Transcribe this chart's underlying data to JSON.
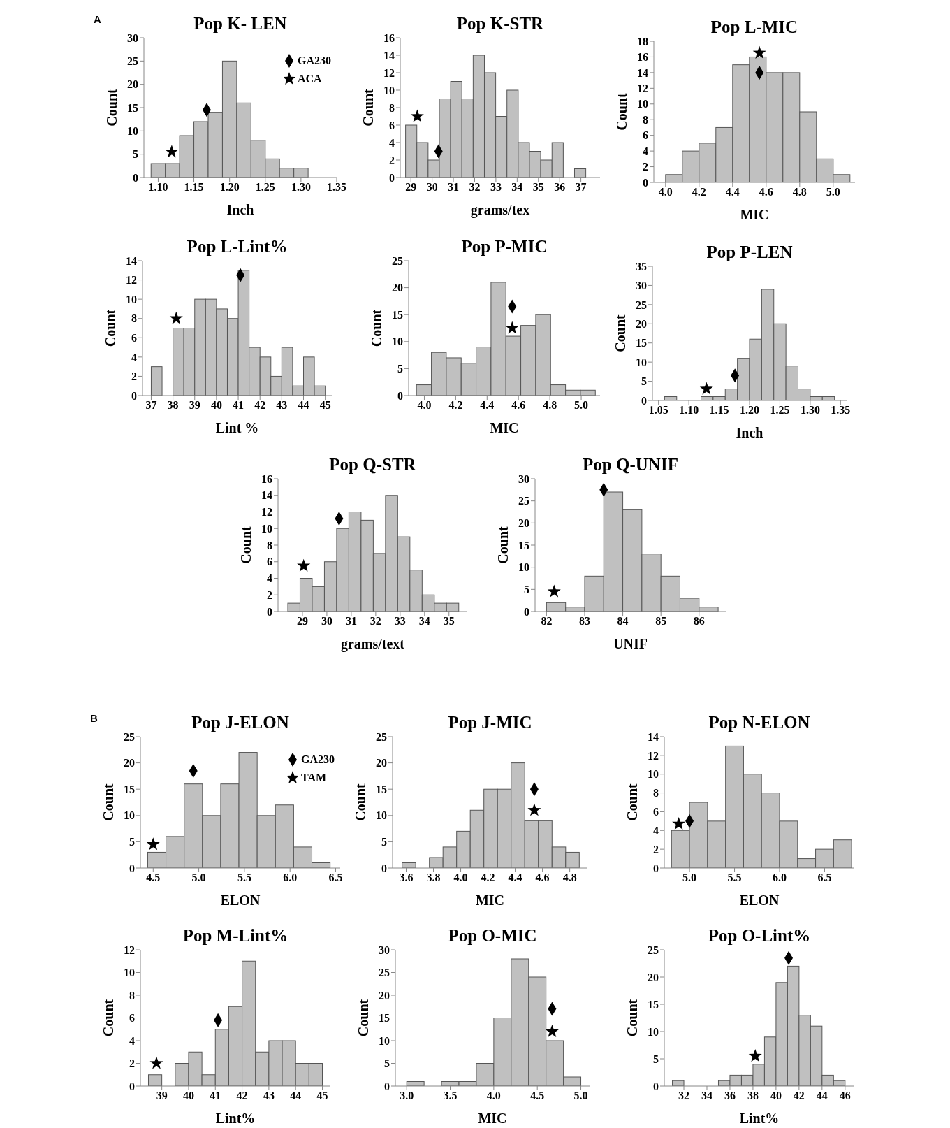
{
  "chart_data": [
    {
      "type": "histogram",
      "title": "Pop K- LEN",
      "xlabel": "Inch",
      "ylabel": "Count",
      "annotations": [
        "A"
      ],
      "legend": "top right",
      "color": "#c0c0c0",
      "bins": [
        1.09,
        1.11,
        1.13,
        1.15,
        1.17,
        1.19,
        1.21,
        1.23,
        1.25,
        1.27,
        1.29,
        1.31
      ],
      "values": [
        3,
        3,
        9,
        12,
        14,
        25,
        16,
        8,
        4,
        2,
        2
      ],
      "xlim": [
        1.08,
        1.35
      ],
      "xticks": [
        {
          "value": 1.1,
          "label": "1.10"
        },
        1.15,
        {
          "value": 1.2,
          "label": "1.20"
        },
        1.25,
        {
          "value": 1.3,
          "label": "1.30"
        },
        1.35
      ],
      "ylim": [
        0,
        30
      ],
      "yticks": [
        0,
        5,
        10,
        15,
        20,
        25,
        30
      ],
      "series": [
        {
          "name": "GA230",
          "type": "scatter",
          "marker": "diamond",
          "color": "#000000",
          "x": [
            1.168
          ],
          "values": [
            14.5
          ]
        },
        {
          "name": "ACA",
          "type": "scatter",
          "marker": "star",
          "color": "#000000",
          "x": [
            1.119
          ],
          "values": [
            5.5
          ]
        }
      ]
    },
    {
      "type": "histogram",
      "title": "Pop K-STR",
      "xlabel": "grams/tex",
      "ylabel": "Count",
      "color": "#c0c0c0",
      "bins": [
        28.75,
        29.28,
        29.81,
        30.34,
        30.87,
        31.4,
        31.93,
        32.46,
        32.99,
        33.52,
        34.05,
        34.58,
        35.11,
        35.64,
        36.17,
        36.7,
        37.23
      ],
      "values": [
        6,
        4,
        2,
        9,
        11,
        9,
        14,
        12,
        7,
        10,
        4,
        3,
        2,
        4,
        0,
        1
      ],
      "xlim": [
        28.5,
        37.9
      ],
      "xticks": [
        29,
        30,
        31,
        32,
        33,
        34,
        35,
        36,
        37
      ],
      "ylim": [
        0,
        16
      ],
      "yticks": [
        0,
        2,
        4,
        6,
        8,
        10,
        12,
        14,
        16
      ],
      "series": [
        {
          "type": "scatter",
          "marker": "diamond",
          "color": "#000000",
          "x": [
            30.3
          ],
          "values": [
            3
          ]
        },
        {
          "type": "scatter",
          "marker": "star",
          "color": "#000000",
          "x": [
            29.3
          ],
          "values": [
            7
          ]
        }
      ]
    },
    {
      "type": "histogram",
      "title": "Pop L-MIC",
      "xlabel": "MIC",
      "ylabel": "Count",
      "color": "#c0c0c0",
      "bins": [
        4.0,
        4.1,
        4.2,
        4.3,
        4.4,
        4.5,
        4.6,
        4.7,
        4.8,
        4.9,
        5.0,
        5.1
      ],
      "values": [
        1,
        4,
        5,
        7,
        15,
        16,
        14,
        14,
        9,
        3,
        1
      ],
      "xlim": [
        3.93,
        5.13
      ],
      "xticks": [
        {
          "value": 4,
          "label": "4.0"
        },
        4.2,
        4.4,
        4.6,
        4.8,
        {
          "value": 5,
          "label": "5.0"
        }
      ],
      "ylim": [
        0,
        18
      ],
      "yticks": [
        0,
        2,
        4,
        6,
        8,
        10,
        12,
        14,
        16,
        18
      ],
      "series": [
        {
          "type": "scatter",
          "marker": "diamond",
          "color": "#000000",
          "x": [
            4.56
          ],
          "values": [
            14
          ]
        },
        {
          "type": "scatter",
          "marker": "star",
          "color": "#000000",
          "x": [
            4.56
          ],
          "values": [
            16.5
          ]
        }
      ]
    },
    {
      "type": "histogram",
      "title": "Pop L-Lint%",
      "xlabel": "Lint %",
      "ylabel": "Count",
      "color": "#c0c0c0",
      "bins": [
        37,
        37.5,
        38,
        38.5,
        39,
        39.5,
        40,
        40.5,
        41,
        41.5,
        42,
        42.5,
        43,
        43.5,
        44,
        44.5,
        45
      ],
      "values": [
        3,
        0,
        7,
        7,
        10,
        10,
        9,
        8,
        13,
        5,
        4,
        2,
        5,
        1,
        4,
        1
      ],
      "xlim": [
        36.6,
        45.3
      ],
      "xticks": [
        37,
        38,
        39,
        40,
        41,
        42,
        43,
        44,
        45
      ],
      "ylim": [
        0,
        14
      ],
      "yticks": [
        0,
        2,
        4,
        6,
        8,
        10,
        12,
        14
      ],
      "series": [
        {
          "type": "scatter",
          "marker": "diamond",
          "color": "#000000",
          "x": [
            41.1
          ],
          "values": [
            12.5
          ]
        },
        {
          "type": "scatter",
          "marker": "star",
          "color": "#000000",
          "x": [
            38.15
          ],
          "values": [
            8
          ]
        }
      ]
    },
    {
      "type": "histogram",
      "title": "Pop P-MIC",
      "xlabel": "MIC",
      "ylabel": "Count",
      "color": "#c0c0c0",
      "bins": [
        3.95,
        4.045,
        4.14,
        4.235,
        4.33,
        4.425,
        4.52,
        4.615,
        4.71,
        4.805,
        4.9,
        4.995,
        5.09
      ],
      "values": [
        2,
        8,
        7,
        6,
        9,
        21,
        11,
        13,
        15,
        2,
        1,
        1
      ],
      "xlim": [
        3.9,
        5.12
      ],
      "xticks": [
        {
          "value": 4,
          "label": "4.0"
        },
        4.2,
        4.4,
        4.6,
        4.8,
        {
          "value": 5,
          "label": "5.0"
        }
      ],
      "ylim": [
        0,
        25
      ],
      "yticks": [
        0,
        5,
        10,
        15,
        20,
        25
      ],
      "series": [
        {
          "type": "scatter",
          "marker": "diamond",
          "color": "#000000",
          "x": [
            4.56
          ],
          "values": [
            16.5
          ]
        },
        {
          "type": "scatter",
          "marker": "star",
          "color": "#000000",
          "x": [
            4.56
          ],
          "values": [
            12.5
          ]
        }
      ]
    },
    {
      "type": "histogram",
      "title": "Pop P-LEN",
      "xlabel": "Inch",
      "ylabel": "Count",
      "color": "#c0c0c0",
      "bins": [
        1.06,
        1.08,
        1.1,
        1.12,
        1.14,
        1.16,
        1.18,
        1.2,
        1.22,
        1.24,
        1.26,
        1.28,
        1.3,
        1.32,
        1.34
      ],
      "values": [
        1,
        0,
        0,
        1,
        1,
        3,
        11,
        16,
        29,
        20,
        9,
        3,
        1,
        1
      ],
      "xlim": [
        1.04,
        1.36
      ],
      "xticks": [
        1.05,
        {
          "value": 1.1,
          "label": "1.10"
        },
        1.15,
        {
          "value": 1.2,
          "label": "1.20"
        },
        1.25,
        {
          "value": 1.3,
          "label": "1.30"
        },
        1.35
      ],
      "ylim": [
        0,
        35
      ],
      "yticks": [
        0,
        5,
        10,
        15,
        20,
        25,
        30,
        35
      ],
      "series": [
        {
          "type": "scatter",
          "marker": "diamond",
          "color": "#000000",
          "x": [
            1.176
          ],
          "values": [
            6.5
          ]
        },
        {
          "type": "scatter",
          "marker": "star",
          "color": "#000000",
          "x": [
            1.129
          ],
          "values": [
            3
          ]
        }
      ]
    },
    {
      "type": "histogram",
      "title": "Pop Q-STR",
      "xlabel": "grams/text",
      "ylabel": "Count",
      "color": "#c0c0c0",
      "bins": [
        28.4,
        28.9,
        29.4,
        29.9,
        30.4,
        30.9,
        31.4,
        31.9,
        32.4,
        32.9,
        33.4,
        33.9,
        34.4,
        34.9,
        35.4
      ],
      "values": [
        1,
        4,
        3,
        6,
        10,
        12,
        11,
        7,
        14,
        9,
        5,
        2,
        1,
        1
      ],
      "xlim": [
        28,
        35.75
      ],
      "xticks": [
        29,
        30,
        31,
        32,
        33,
        34,
        35
      ],
      "ylim": [
        0,
        16
      ],
      "yticks": [
        0,
        2,
        4,
        6,
        8,
        10,
        12,
        14,
        16
      ],
      "series": [
        {
          "type": "scatter",
          "marker": "diamond",
          "color": "#000000",
          "x": [
            30.5
          ],
          "values": [
            11.2
          ]
        },
        {
          "type": "scatter",
          "marker": "star",
          "color": "#000000",
          "x": [
            29.05
          ],
          "values": [
            5.5
          ]
        }
      ]
    },
    {
      "type": "histogram",
      "title": "Pop Q-UNIF",
      "xlabel": "UNIF",
      "ylabel": "Count",
      "color": "#c0c0c0",
      "bins": [
        82,
        82.5,
        83,
        83.5,
        84,
        84.5,
        85,
        85.5,
        86,
        86.5
      ],
      "values": [
        2,
        1,
        8,
        27,
        23,
        13,
        8,
        3,
        1
      ],
      "xlim": [
        81.7,
        86.7
      ],
      "xticks": [
        82,
        83,
        84,
        85,
        86
      ],
      "ylim": [
        0,
        30
      ],
      "yticks": [
        0,
        5,
        10,
        15,
        20,
        25,
        30
      ],
      "series": [
        {
          "type": "scatter",
          "marker": "diamond",
          "color": "#000000",
          "x": [
            83.5
          ],
          "values": [
            27.5
          ]
        },
        {
          "type": "scatter",
          "marker": "star",
          "color": "#000000",
          "x": [
            82.2
          ],
          "values": [
            4.5
          ]
        }
      ]
    },
    {
      "type": "histogram",
      "title": "Pop J-ELON",
      "xlabel": "ELON",
      "ylabel": "Count",
      "annotations": [
        "B"
      ],
      "legend": "top right",
      "color": "#c0c0c0",
      "bins": [
        4.44,
        4.64,
        4.84,
        5.04,
        5.24,
        5.44,
        5.64,
        5.84,
        6.04,
        6.24,
        6.44
      ],
      "values": [
        3,
        6,
        16,
        10,
        16,
        22,
        10,
        12,
        4,
        1
      ],
      "xlim": [
        4.36,
        6.55
      ],
      "xticks": [
        4.5,
        {
          "value": 5,
          "label": "5.0"
        },
        5.5,
        {
          "value": 6,
          "label": "6.0"
        },
        6.5
      ],
      "ylim": [
        0,
        25
      ],
      "yticks": [
        0,
        5,
        10,
        15,
        20,
        25
      ],
      "series": [
        {
          "name": "GA230",
          "type": "scatter",
          "marker": "diamond",
          "color": "#000000",
          "x": [
            4.94
          ],
          "values": [
            18.5
          ]
        },
        {
          "name": "TAM",
          "type": "scatter",
          "marker": "star",
          "color": "#000000",
          "x": [
            4.5
          ],
          "values": [
            4.5
          ]
        }
      ]
    },
    {
      "type": "histogram",
      "title": "Pop J-MIC",
      "xlabel": "MIC",
      "ylabel": "Count",
      "color": "#c0c0c0",
      "bins": [
        3.57,
        3.67,
        3.77,
        3.87,
        3.97,
        4.07,
        4.17,
        4.27,
        4.37,
        4.47,
        4.57,
        4.67,
        4.77,
        4.87
      ],
      "values": [
        1,
        0,
        2,
        4,
        7,
        11,
        15,
        15,
        20,
        9,
        9,
        4,
        3
      ],
      "xlim": [
        3.5,
        4.93
      ],
      "xticks": [
        3.6,
        3.8,
        {
          "value": 4,
          "label": "4.0"
        },
        4.2,
        4.4,
        4.6,
        4.8
      ],
      "ylim": [
        0,
        25
      ],
      "yticks": [
        0,
        5,
        10,
        15,
        20,
        25
      ],
      "series": [
        {
          "type": "scatter",
          "marker": "diamond",
          "color": "#000000",
          "x": [
            4.54
          ],
          "values": [
            15
          ]
        },
        {
          "type": "scatter",
          "marker": "star",
          "color": "#000000",
          "x": [
            4.54
          ],
          "values": [
            11
          ]
        }
      ]
    },
    {
      "type": "histogram",
      "title": "Pop N-ELON",
      "xlabel": "ELON",
      "ylabel": "Count",
      "color": "#c0c0c0",
      "bins": [
        4.8,
        5.0,
        5.2,
        5.4,
        5.6,
        5.8,
        6.0,
        6.2,
        6.4,
        6.6,
        6.8
      ],
      "values": [
        4,
        7,
        5,
        13,
        10,
        8,
        5,
        1,
        2,
        3
      ],
      "xlim": [
        4.72,
        6.83
      ],
      "xticks": [
        {
          "value": 5,
          "label": "5.0"
        },
        5.5,
        {
          "value": 6,
          "label": "6.0"
        },
        6.5
      ],
      "ylim": [
        0,
        14
      ],
      "yticks": [
        0,
        2,
        4,
        6,
        8,
        10,
        12,
        14
      ],
      "series": [
        {
          "type": "scatter",
          "marker": "diamond",
          "color": "#000000",
          "x": [
            5.0
          ],
          "values": [
            5
          ]
        },
        {
          "type": "scatter",
          "marker": "star",
          "color": "#000000",
          "x": [
            4.88
          ],
          "values": [
            4.7
          ]
        }
      ]
    },
    {
      "type": "histogram",
      "title": "Pop M-Lint%",
      "xlabel": "Lint%",
      "ylabel": "Count",
      "color": "#c0c0c0",
      "bins": [
        38.5,
        39,
        39.5,
        40,
        40.5,
        41,
        41.5,
        42,
        42.5,
        43,
        43.5,
        44,
        44.5,
        45
      ],
      "values": [
        1,
        0,
        2,
        3,
        1,
        5,
        7,
        11,
        3,
        4,
        4,
        2,
        2
      ],
      "xlim": [
        38.2,
        45.3
      ],
      "xticks": [
        39,
        40,
        41,
        42,
        43,
        44,
        45
      ],
      "ylim": [
        0,
        12
      ],
      "yticks": [
        0,
        2,
        4,
        6,
        8,
        10,
        12
      ],
      "series": [
        {
          "type": "scatter",
          "marker": "diamond",
          "color": "#000000",
          "x": [
            41.1
          ],
          "values": [
            5.8
          ]
        },
        {
          "type": "scatter",
          "marker": "star",
          "color": "#000000",
          "x": [
            38.8
          ],
          "values": [
            2
          ]
        }
      ]
    },
    {
      "type": "histogram",
      "title": "Pop O-MIC",
      "xlabel": "MIC",
      "ylabel": "Count",
      "color": "#c0c0c0",
      "bins": [
        3.0,
        3.2,
        3.4,
        3.6,
        3.8,
        4.0,
        4.2,
        4.4,
        4.6,
        4.8,
        5.0
      ],
      "values": [
        1,
        0,
        1,
        1,
        5,
        15,
        28,
        24,
        10,
        2
      ],
      "xlim": [
        2.87,
        5.1
      ],
      "xticks": [
        {
          "value": 3,
          "label": "3.0"
        },
        3.5,
        {
          "value": 4,
          "label": "4.0"
        },
        4.5,
        {
          "value": 5,
          "label": "5.0"
        }
      ],
      "ylim": [
        0,
        30
      ],
      "yticks": [
        0,
        5,
        10,
        15,
        20,
        25,
        30
      ],
      "series": [
        {
          "type": "scatter",
          "marker": "diamond",
          "color": "#000000",
          "x": [
            4.67
          ],
          "values": [
            17
          ]
        },
        {
          "type": "scatter",
          "marker": "star",
          "color": "#000000",
          "x": [
            4.67
          ],
          "values": [
            12
          ]
        }
      ]
    },
    {
      "type": "histogram",
      "title": "Pop O-Lint%",
      "xlabel": "Lint%",
      "ylabel": "Count",
      "color": "#c0c0c0",
      "bins": [
        31,
        32,
        33,
        34,
        35,
        36,
        37,
        38,
        39,
        40,
        41,
        42,
        43,
        44,
        45,
        46
      ],
      "values": [
        1,
        0,
        0,
        0,
        1,
        2,
        2,
        4,
        9,
        19,
        22,
        13,
        11,
        2,
        1
      ],
      "xlim": [
        30.3,
        46.8
      ],
      "xticks": [
        32,
        34,
        36,
        38,
        40,
        42,
        44,
        46
      ],
      "ylim": [
        0,
        25
      ],
      "yticks": [
        0,
        5,
        10,
        15,
        20,
        25
      ],
      "series": [
        {
          "type": "scatter",
          "marker": "diamond",
          "color": "#000000",
          "x": [
            41.1
          ],
          "values": [
            23.5
          ]
        },
        {
          "type": "scatter",
          "marker": "star",
          "color": "#000000",
          "x": [
            38.2
          ],
          "values": [
            5.5
          ]
        }
      ]
    }
  ]
}
